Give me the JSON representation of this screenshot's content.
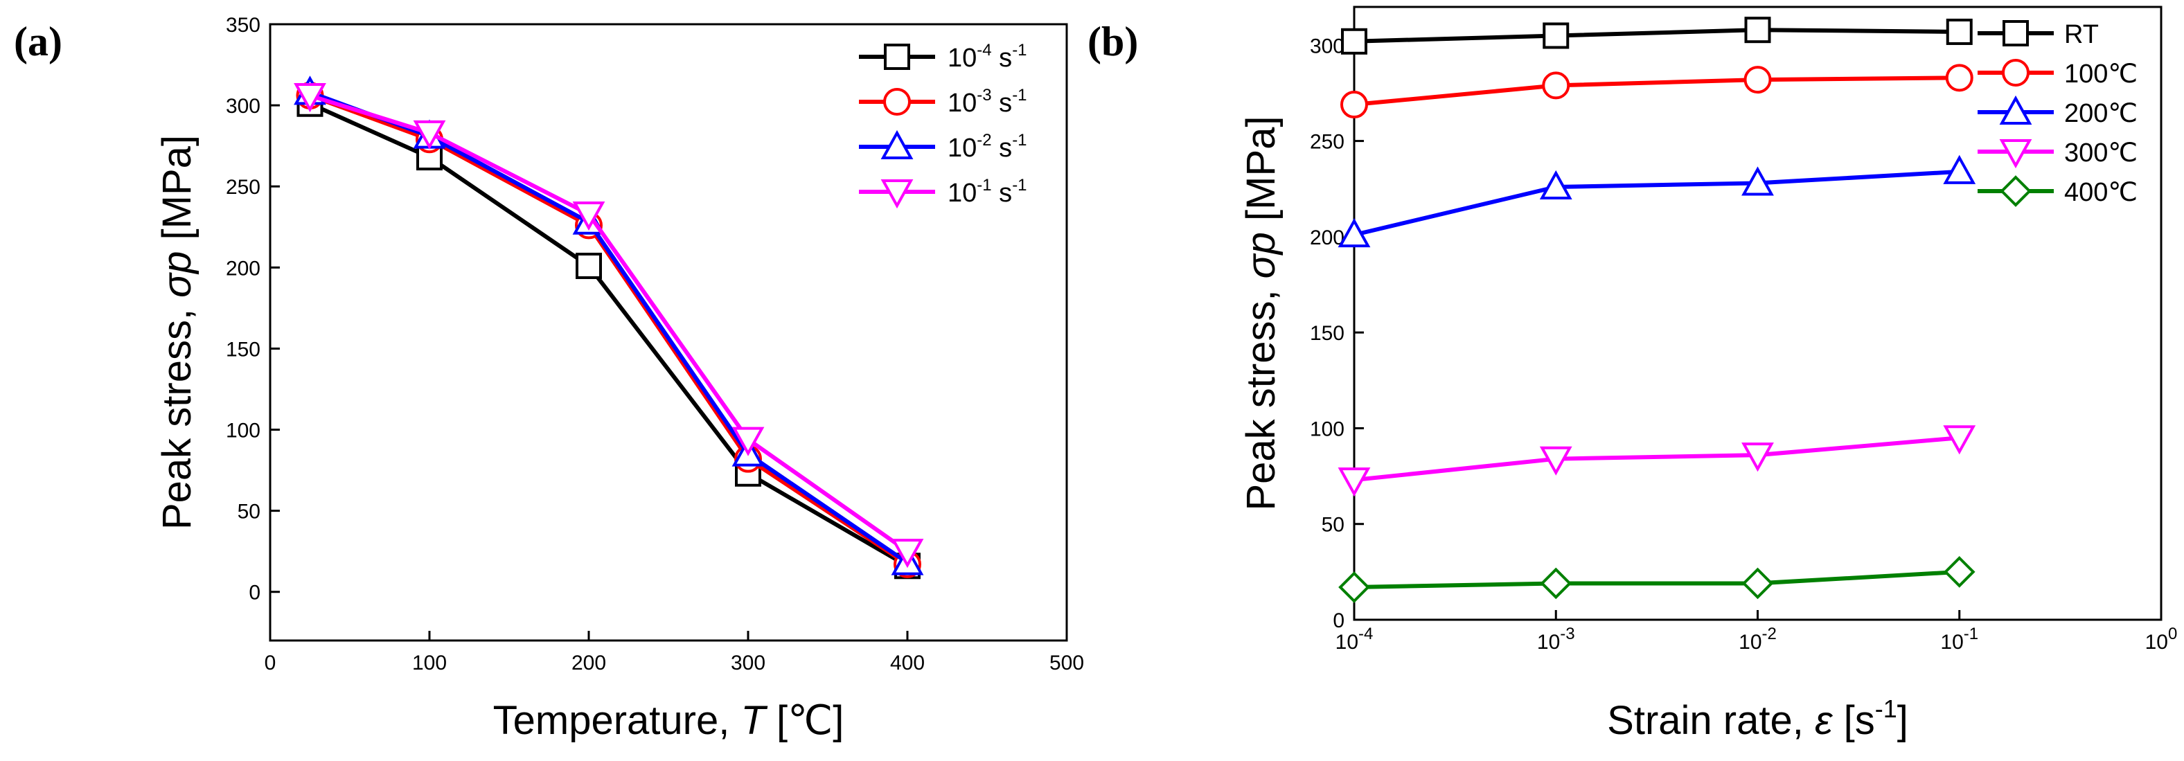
{
  "chart_data": [
    {
      "type": "line",
      "panel_label": "(a)",
      "xlabel": "Temperature, ",
      "xlabel_symbol": "T",
      "xlabel_unit": " [℃]",
      "ylabel": "Peak stress, ",
      "ylabel_symbol": "σp",
      "ylabel_unit": " [MPa]",
      "xlim": [
        0,
        500
      ],
      "ylim": [
        -30,
        350
      ],
      "xticks": [
        0,
        100,
        200,
        300,
        400,
        500
      ],
      "yticks": [
        0,
        50,
        100,
        150,
        200,
        250,
        300,
        350
      ],
      "x": [
        25,
        100,
        200,
        300,
        400
      ],
      "legend_position": "top-right",
      "series": [
        {
          "name": "10^-4 s^-1",
          "base": "10",
          "exp": "-4",
          "unit": " s",
          "unit_exp": "-1",
          "color": "#000000",
          "marker": "square",
          "values": [
            301,
            268,
            201,
            73,
            16
          ]
        },
        {
          "name": "10^-3 s^-1",
          "base": "10",
          "exp": "-3",
          "unit": " s",
          "unit_exp": "-1",
          "color": "#ff0000",
          "marker": "circle",
          "values": [
            306,
            279,
            226,
            82,
            17
          ]
        },
        {
          "name": "10^-2 s^-1",
          "base": "10",
          "exp": "-2",
          "unit": " s",
          "unit_exp": "-1",
          "color": "#0000ff",
          "marker": "triangle-up",
          "values": [
            308,
            281,
            228,
            85,
            18
          ]
        },
        {
          "name": "10^-1 s^-1",
          "base": "10",
          "exp": "-1",
          "unit": " s",
          "unit_exp": "-1",
          "color": "#ff00ff",
          "marker": "triangle-down",
          "values": [
            306,
            283,
            233,
            94,
            25
          ]
        }
      ]
    },
    {
      "type": "line",
      "xscale": "log",
      "panel_label": "(b)",
      "xlabel": "Strain rate, ",
      "xlabel_symbol": "ε",
      "xlabel_unit": " [s",
      "xlabel_unit_exp": "-1",
      "xlabel_unit_close": "]",
      "ylabel": "Peak stress, ",
      "ylabel_symbol": "σp",
      "ylabel_unit": " [MPa]",
      "xlim_exp": [
        -4,
        0
      ],
      "ylim": [
        0,
        320
      ],
      "xtick_exps": [
        "-4",
        "-3",
        "-2",
        "-1",
        "0"
      ],
      "xtick_base": "10",
      "yticks": [
        0,
        50,
        100,
        150,
        200,
        250,
        300
      ],
      "x": [
        0.0001,
        0.001,
        0.01,
        0.1
      ],
      "legend_position": "top-right",
      "series": [
        {
          "name": "RT",
          "color": "#000000",
          "marker": "square",
          "values": [
            302,
            305,
            308,
            307
          ]
        },
        {
          "name": "100℃",
          "color": "#ff0000",
          "marker": "circle",
          "values": [
            269,
            279,
            282,
            283
          ]
        },
        {
          "name": "200℃",
          "color": "#0000ff",
          "marker": "triangle-up",
          "values": [
            201,
            226,
            228,
            234
          ]
        },
        {
          "name": "300℃",
          "color": "#ff00ff",
          "marker": "triangle-down",
          "values": [
            73,
            84,
            86,
            95
          ]
        },
        {
          "name": "400℃",
          "color": "#008000",
          "marker": "diamond",
          "values": [
            17,
            19,
            19,
            25
          ]
        }
      ]
    }
  ]
}
